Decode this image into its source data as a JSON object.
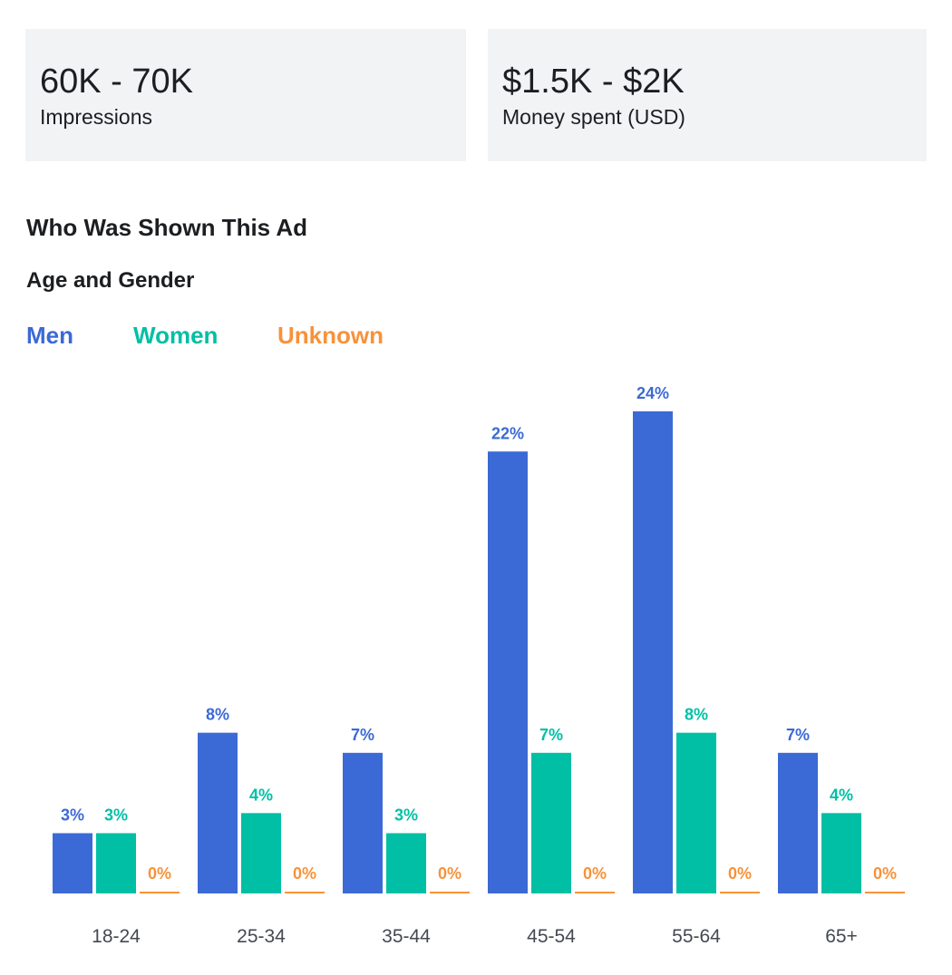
{
  "stats": {
    "impressions": {
      "value": "60K - 70K",
      "label": "Impressions"
    },
    "spent": {
      "value": "$1.5K - $2K",
      "label": "Money spent (USD)"
    }
  },
  "section_title": "Who Was Shown This Ad",
  "sub_title": "Age and Gender",
  "colors": {
    "men": "#3b6ad6",
    "women": "#00bfa5",
    "unknown": "#f7923a",
    "axis_label": "#444950"
  },
  "chart_data": {
    "type": "bar",
    "categories": [
      "18-24",
      "25-34",
      "35-44",
      "45-54",
      "55-64",
      "65+"
    ],
    "series": [
      {
        "name": "Men",
        "values": [
          3,
          8,
          7,
          22,
          24,
          7
        ],
        "color": "#3b6ad6"
      },
      {
        "name": "Women",
        "values": [
          3,
          4,
          3,
          7,
          8,
          4
        ],
        "color": "#00bfa5"
      },
      {
        "name": "Unknown",
        "values": [
          0,
          0,
          0,
          0,
          0,
          0
        ],
        "color": "#f7923a"
      }
    ],
    "value_suffix": "%",
    "legend_position": "top-left",
    "grid": false
  }
}
